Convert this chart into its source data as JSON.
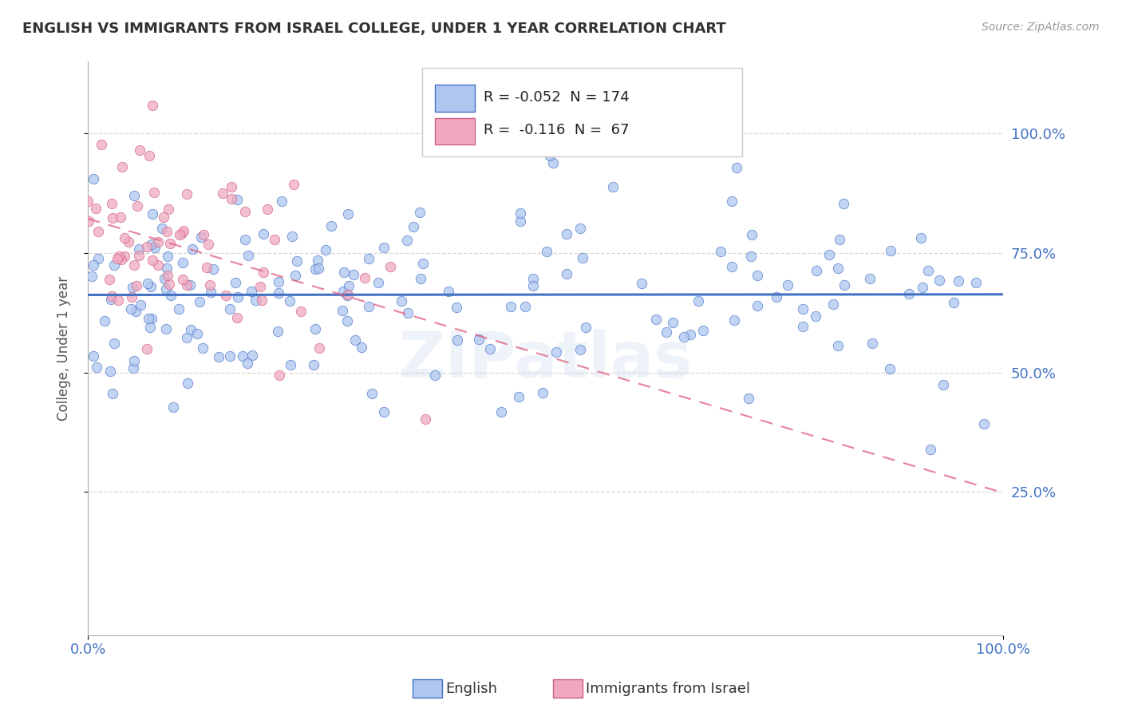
{
  "title": "ENGLISH VS IMMIGRANTS FROM ISRAEL COLLEGE, UNDER 1 YEAR CORRELATION CHART",
  "source_text": "Source: ZipAtlas.com",
  "ylabel": "College, Under 1 year",
  "xlim": [
    0.0,
    1.0
  ],
  "ylim": [
    -0.05,
    1.15
  ],
  "ytick_labels": [
    "25.0%",
    "50.0%",
    "75.0%",
    "100.0%"
  ],
  "ytick_values": [
    0.25,
    0.5,
    0.75,
    1.0
  ],
  "legend_R_english": "-0.052",
  "legend_N_english": "174",
  "legend_R_israel": "-0.116",
  "legend_N_israel": "67",
  "color_english_fill": "#aec6f0",
  "color_english_edge": "#4472c4",
  "color_israel_fill": "#f0a8c0",
  "color_israel_edge": "#cc6080",
  "color_english_line": "#4472c4",
  "color_israel_line": "#e06080",
  "watermark": "ZIPatlas",
  "background_color": "#ffffff",
  "grid_color": "#cccccc"
}
